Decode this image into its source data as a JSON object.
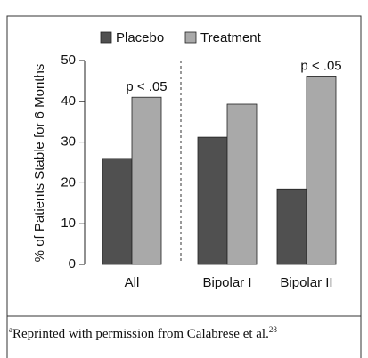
{
  "chart_data": {
    "type": "bar",
    "ylabel": "% of Patients Stable for 6 Months",
    "categories": [
      "All",
      "Bipolar I",
      "Bipolar II"
    ],
    "series": [
      {
        "name": "Placebo",
        "color": "#505050",
        "values": [
          26,
          31.2,
          18.5
        ]
      },
      {
        "name": "Treatment",
        "color": "#a9a9a9",
        "values": [
          41,
          39.3,
          46.2
        ]
      }
    ],
    "ylim": [
      0,
      50
    ],
    "yticks": [
      0,
      10,
      20,
      30,
      40,
      50
    ],
    "annotations": [
      {
        "text": "p < .05",
        "category": "All"
      },
      {
        "text": "p < .05",
        "category": "Bipolar II"
      }
    ]
  },
  "footnote": {
    "marker": "a",
    "text": "Reprinted with permission from Calabrese et al.",
    "ref": "28"
  }
}
